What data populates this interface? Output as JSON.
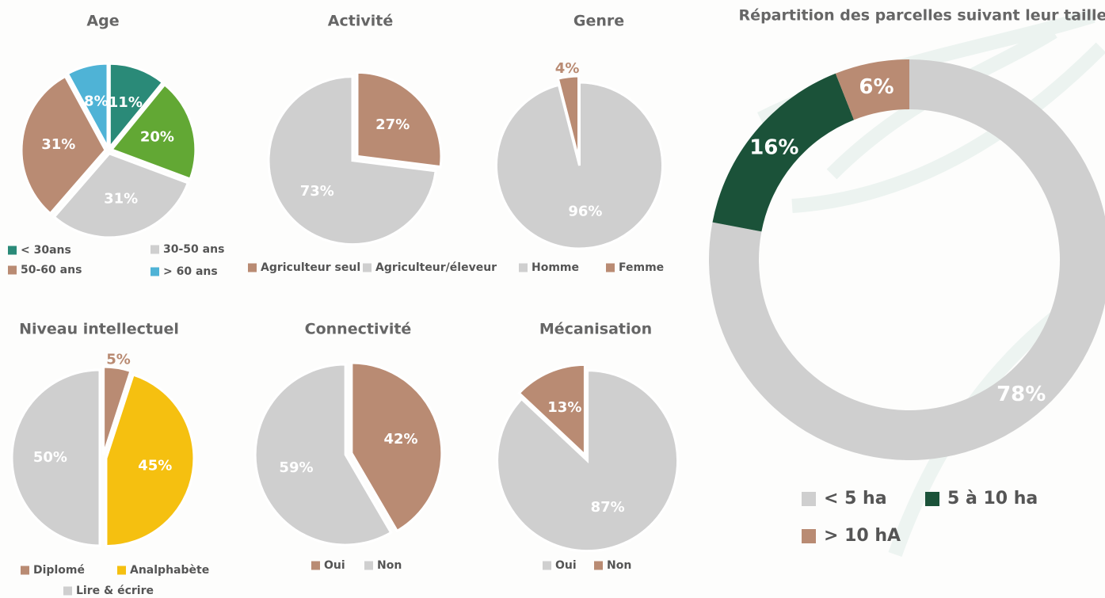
{
  "chart_data": [
    {
      "type": "pie",
      "title": "Age",
      "categories": [
        "< 30ans",
        null,
        "30-50 ans",
        "50-60 ans",
        "> 60 ans"
      ],
      "values": [
        11,
        20,
        31,
        31,
        8
      ],
      "value_labels": [
        "11%",
        "20%",
        "31%",
        "31%",
        "8%"
      ],
      "colors": [
        "#2a8a78",
        "#62a834",
        "#cfcfcf",
        "#b98b73",
        "#4fb3d6"
      ]
    },
    {
      "type": "pie",
      "title": "Activité",
      "categories": [
        "Agriculteur seul",
        "Agriculteur/éleveur"
      ],
      "values": [
        27,
        73
      ],
      "value_labels": [
        "27%",
        "73%"
      ],
      "colors": [
        "#b98b73",
        "#cfcfcf"
      ]
    },
    {
      "type": "pie",
      "title": "Genre",
      "categories": [
        "Homme",
        "Femme"
      ],
      "values": [
        96,
        4
      ],
      "value_labels": [
        "96%",
        "4%"
      ],
      "colors": [
        "#cfcfcf",
        "#b98b73"
      ]
    },
    {
      "type": "pie",
      "title": "Niveau intellectuel",
      "categories": [
        "Diplomé",
        "Analphabète",
        "Lire & écrire"
      ],
      "values": [
        5,
        45,
        50
      ],
      "value_labels": [
        "5%",
        "45%",
        "50%"
      ],
      "colors": [
        "#b98b73",
        "#f5c010",
        "#cfcfcf"
      ]
    },
    {
      "type": "pie",
      "title": "Connectivité",
      "categories": [
        "Oui",
        "Non"
      ],
      "values": [
        42,
        59
      ],
      "value_labels": [
        "42%",
        "59%"
      ],
      "colors": [
        "#b98b73",
        "#cfcfcf"
      ]
    },
    {
      "type": "pie",
      "title": "Mécanisation",
      "categories": [
        "Oui",
        "Non"
      ],
      "values": [
        87,
        13
      ],
      "value_labels": [
        "87%",
        "13%"
      ],
      "colors": [
        "#cfcfcf",
        "#b98b73"
      ]
    },
    {
      "type": "donut",
      "title": "Répartition des parcelles suivant leur taille",
      "categories": [
        "< 5 ha",
        "5 à 10 ha",
        "> 10 hA"
      ],
      "values": [
        78,
        16,
        6
      ],
      "value_labels": [
        "78%",
        "16%",
        "6%"
      ],
      "colors": [
        "#cfcfcf",
        "#1b5239",
        "#b98b73"
      ]
    }
  ]
}
